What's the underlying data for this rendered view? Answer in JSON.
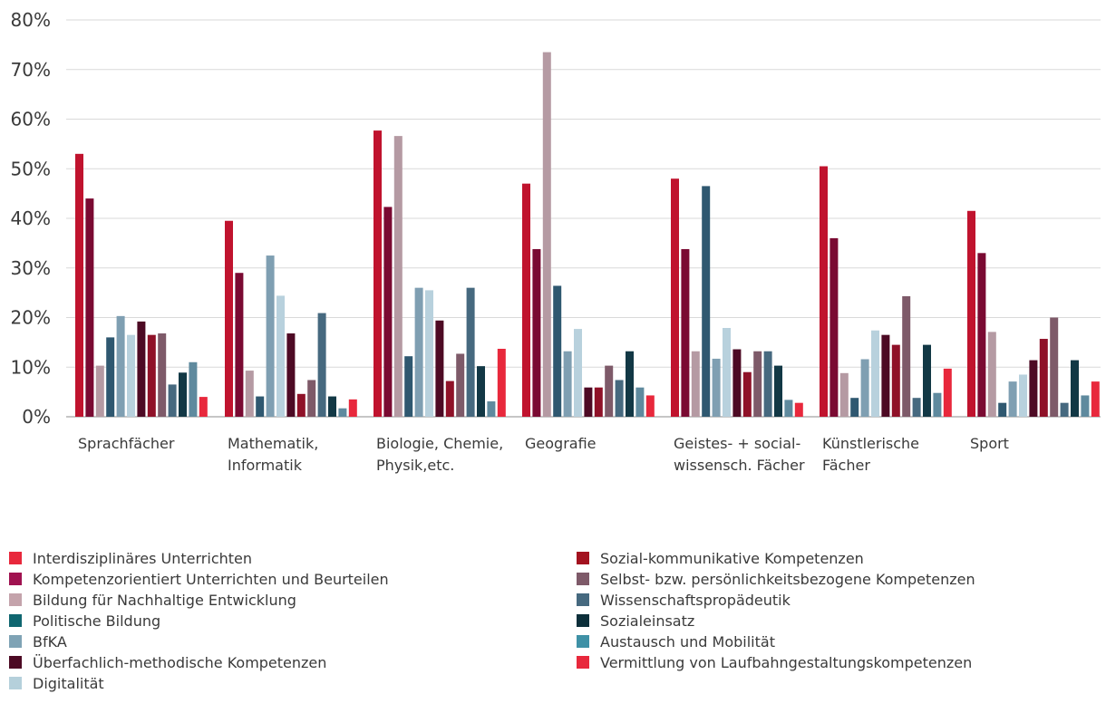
{
  "chart_data": {
    "type": "bar",
    "title": "",
    "xlabel": "",
    "ylabel": "",
    "ylim": [
      0,
      80
    ],
    "yticks": [
      "0%",
      "10%",
      "20%",
      "30%",
      "40%",
      "50%",
      "60%",
      "70%",
      "80%"
    ],
    "grid": true,
    "legend_position": "bottom",
    "categories": [
      [
        "Sprachfächer"
      ],
      [
        "Mathematik,",
        "Informatik"
      ],
      [
        "Biologie, Chemie,",
        "Physik,etc."
      ],
      [
        "Geografie"
      ],
      [
        "Geistes- + social-",
        "wissensch. Fächer"
      ],
      [
        "Künstlerische",
        "Fächer"
      ],
      [
        "Sport"
      ]
    ],
    "series": [
      {
        "name": "Sozial-kommunikative Kompetenzen",
        "color": "#c0132e",
        "values": [
          53,
          39.5,
          57.7,
          47,
          48,
          50.5,
          41.5
        ]
      },
      {
        "name": "Kompetenzorientiert Unterrichten und Beurteilen",
        "color": "#7a0a32",
        "values": [
          44,
          29,
          42.3,
          33.8,
          33.8,
          36,
          33
        ]
      },
      {
        "name": "Bildung für Nachhaltige Entwicklung",
        "color": "#b59aa3",
        "values": [
          10.3,
          9.3,
          56.6,
          73.5,
          13.2,
          8.8,
          17.1
        ]
      },
      {
        "name": "Wissenschaftspropädeutik",
        "color": "#2f5870",
        "values": [
          16,
          4.1,
          12.2,
          26.4,
          46.5,
          3.8,
          2.8
        ]
      },
      {
        "name": "BfKA",
        "color": "#7f9fb2",
        "values": [
          20.3,
          32.5,
          26,
          13.2,
          11.7,
          11.6,
          7.1
        ]
      },
      {
        "name": "Digitalität",
        "color": "#b8d1dd",
        "values": [
          16.5,
          24.4,
          25.5,
          17.7,
          17.9,
          17.4,
          8.5
        ]
      },
      {
        "name": "Überfachlich-methodische Kompetenzen",
        "color": "#4d0a24",
        "values": [
          19.2,
          16.8,
          19.4,
          5.9,
          13.6,
          16.5,
          11.4
        ]
      },
      {
        "name": "Sozial-kommunikative Kompetenzen",
        "color": "#8f1128",
        "values": [
          16.5,
          4.6,
          7.2,
          5.9,
          9,
          14.5,
          15.7
        ]
      },
      {
        "name": "Selbst- bzw. persönlichkeitsbezogene Kompetenzen",
        "color": "#7e5a69",
        "values": [
          16.8,
          7.4,
          12.7,
          10.3,
          13.2,
          24.3,
          20
        ]
      },
      {
        "name": "Wissenschaftspropädeutik",
        "color": "#46697f",
        "values": [
          6.5,
          20.9,
          26,
          7.4,
          13.2,
          3.8,
          2.8
        ]
      },
      {
        "name": "Sozialeinsatz",
        "color": "#123845",
        "values": [
          8.9,
          4.1,
          10.2,
          13.2,
          10.3,
          14.5,
          11.4
        ]
      },
      {
        "name": "Austausch und Mobilität",
        "color": "#5f8a9e",
        "values": [
          11,
          1.7,
          3.1,
          5.9,
          3.4,
          4.8,
          4.3
        ]
      },
      {
        "name": "Vermittlung von Laufbahngestaltungskompetenzen",
        "color": "#e8283c",
        "values": [
          4,
          3.5,
          13.7,
          4.3,
          2.8,
          9.7,
          7.1
        ]
      }
    ]
  },
  "legend": {
    "left": [
      {
        "label": "Interdisziplinäres Unterrichten",
        "color": "#e8283c"
      },
      {
        "label": "Kompetenzorientiert Unterrichten und Beurteilen",
        "color": "#a01250"
      },
      {
        "label": "Bildung für Nachhaltige Entwicklung",
        "color": "#c4a3ab"
      },
      {
        "label": "Politische Bildung",
        "color": "#0f6670"
      },
      {
        "label": "BfKA",
        "color": "#7fa3b5"
      },
      {
        "label": "Überfachlich-methodische Kompetenzen",
        "color": "#4d0a24"
      },
      {
        "label": "Digitalität",
        "color": "#b5d0db"
      }
    ],
    "right": [
      {
        "label": "Sozial-kommunikative Kompetenzen",
        "color": "#a3121f"
      },
      {
        "label": "Selbst- bzw. persönlichkeitsbezogene Kompetenzen",
        "color": "#7e5a69"
      },
      {
        "label": "Wissenschaftspropädeutik",
        "color": "#46697f"
      },
      {
        "label": "Sozialeinsatz",
        "color": "#0c2f3a"
      },
      {
        "label": "Austausch und Mobilität",
        "color": "#3f91a6"
      },
      {
        "label": "Vermittlung von Laufbahngestaltungskompetenzen",
        "color": "#e8283c"
      }
    ]
  }
}
